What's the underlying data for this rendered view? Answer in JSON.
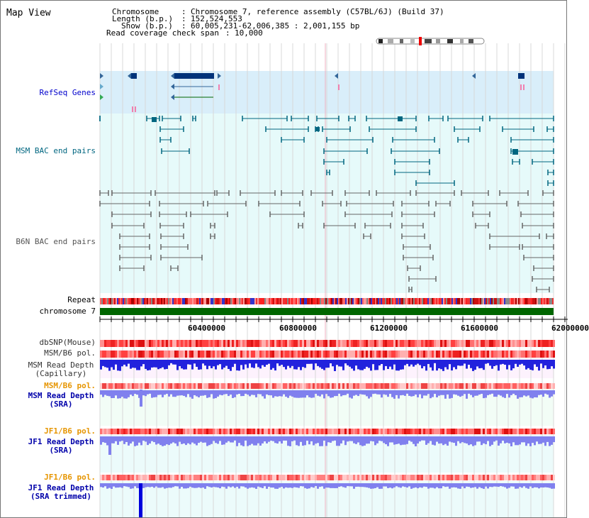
{
  "title": "Map View",
  "header": {
    "chromosome_key": "Chromosome",
    "chromosome_val": "Chromosome 7, reference assembly (C57BL/6J) (Build 37)",
    "length_key": "Length (b.p.)",
    "length_val": "152,524,553",
    "show_key": "Show (b.p.)",
    "show_val": "60,005,231-62,006,385 : 2,001,155 bp",
    "coverage_key": "Read coverage check span",
    "coverage_val": "10,000"
  },
  "tracks": {
    "refseq": "RefSeq Genes",
    "msm_bac": "MSM BAC end pairs",
    "b6n_bac": "B6N BAC end pairs",
    "repeat": "Repeat",
    "chromosome": "chromosome 7",
    "dbsnp": "dbSNP(Mouse)",
    "msm_pol_1": "MSM/B6 pol.",
    "msm_depth_cap_1": "MSM Read Depth",
    "msm_depth_cap_2": "(Capillary)",
    "msm_pol_2": "MSM/B6 pol.",
    "msm_depth_sra_1": "MSM Read Depth",
    "msm_depth_sra_2": "(SRA)",
    "jf1_pol_1": "JF1/B6 pol.",
    "jf1_depth_sra_1": "JF1 Read Depth",
    "jf1_depth_sra_2": "(SRA)",
    "jf1_pol_2": "JF1/B6 pol.",
    "jf1_depth_trim_1": "JF1 Read Depth",
    "jf1_depth_trim_2": "(SRA trimmed)"
  },
  "axis": {
    "ticks": [
      "60400000",
      "60800000",
      "61200000",
      "61600000",
      "62000000"
    ]
  },
  "colors": {
    "refseq_label": "#0000cc",
    "msm_bac_label": "#006680",
    "b6n_bac_label": "#555555",
    "pol_label": "#e69500",
    "refseq_bg": "#d9eefa",
    "bac_bg": "#e6fafa",
    "chromosome_bar": "#006600",
    "gene_fill": "#00337a",
    "msm_bac_line": "#006680",
    "depth_blue": "#2222dd",
    "depth_light": "#8080ee"
  }
}
